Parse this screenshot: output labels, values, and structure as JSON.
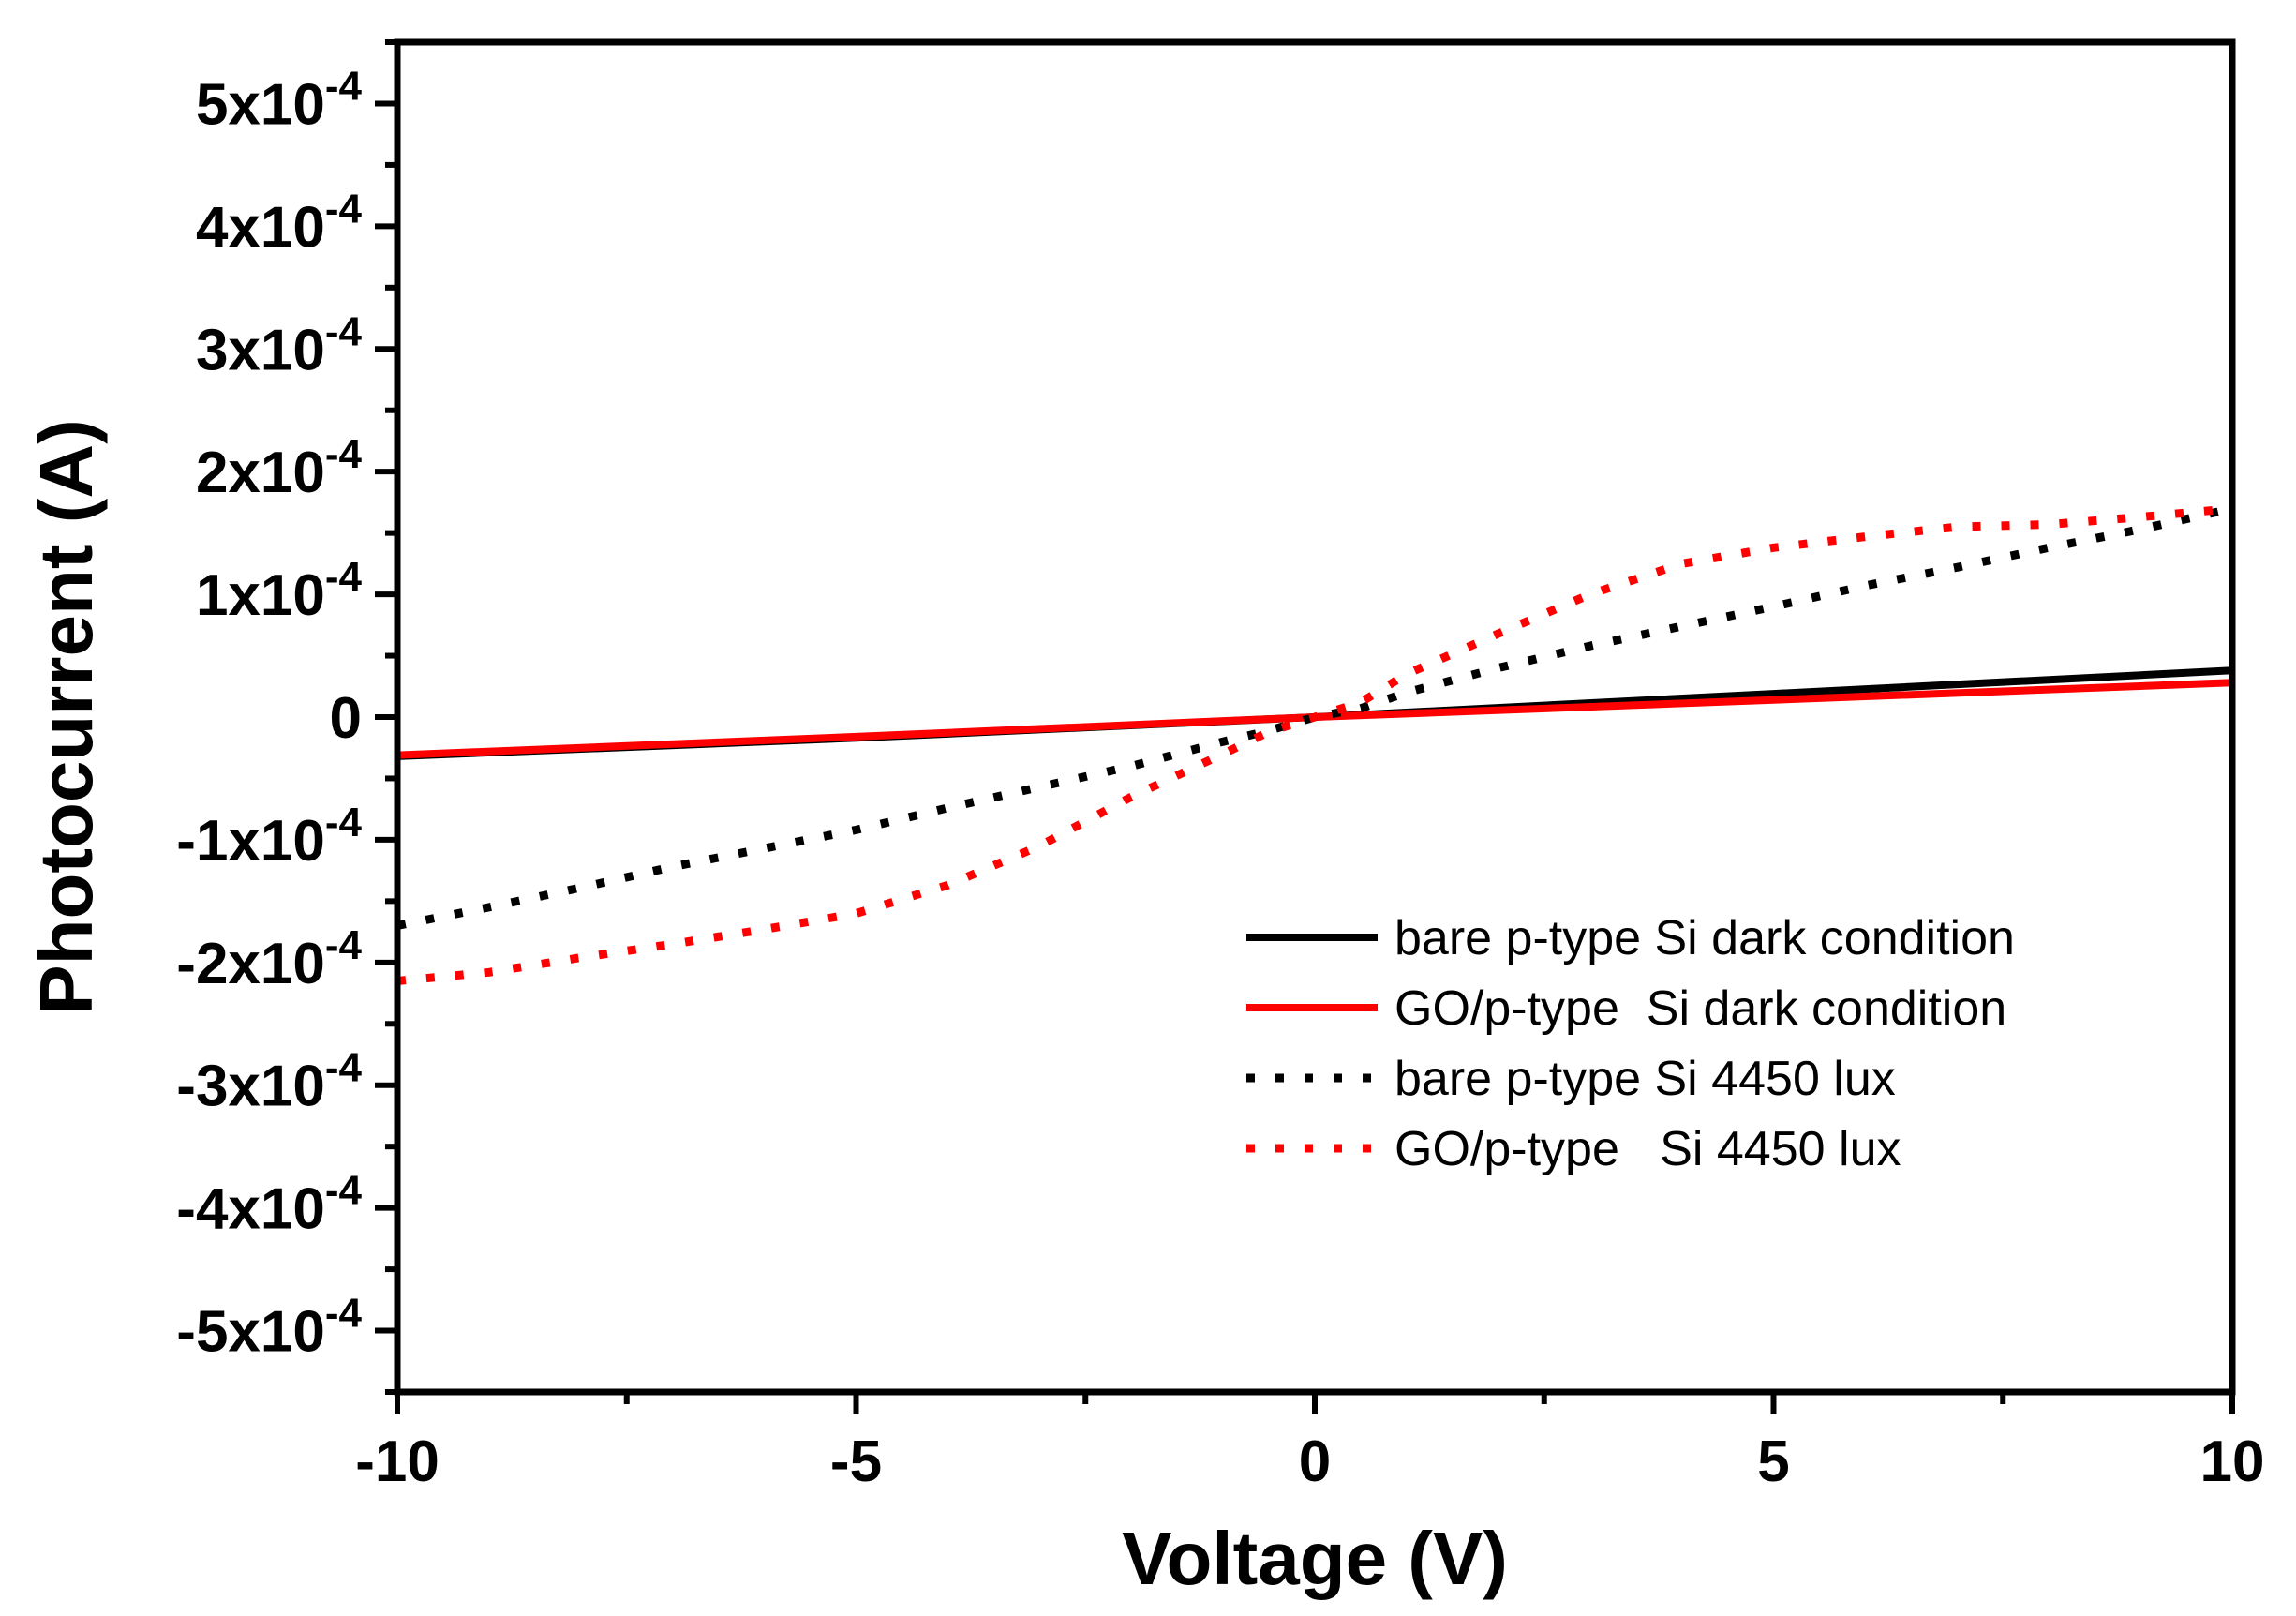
{
  "chart_data": {
    "type": "line",
    "title": "",
    "xlabel": "Voltage (V)",
    "ylabel": "Photocurrent (A)",
    "xlim": [
      -10,
      10
    ],
    "ylim": [
      -0.00055,
      0.00055
    ],
    "x_ticks": [
      {
        "value": -10,
        "label": "-10"
      },
      {
        "value": -5,
        "label": "-5"
      },
      {
        "value": 0,
        "label": "0"
      },
      {
        "value": 5,
        "label": "5"
      },
      {
        "value": 10,
        "label": "10"
      }
    ],
    "y_ticks": [
      {
        "value": 0.0005,
        "mantissa": "5x10",
        "exponent": "-4"
      },
      {
        "value": 0.0004,
        "mantissa": "4x10",
        "exponent": "-4"
      },
      {
        "value": 0.0003,
        "mantissa": "3x10",
        "exponent": "-4"
      },
      {
        "value": 0.0002,
        "mantissa": "2x10",
        "exponent": "-4"
      },
      {
        "value": 0.0001,
        "mantissa": "1x10",
        "exponent": "-4"
      },
      {
        "value": 0,
        "mantissa": "0",
        "exponent": ""
      },
      {
        "value": -0.0001,
        "mantissa": "-1x10",
        "exponent": "-4"
      },
      {
        "value": -0.0002,
        "mantissa": "-2x10",
        "exponent": "-4"
      },
      {
        "value": -0.0003,
        "mantissa": "-3x10",
        "exponent": "-4"
      },
      {
        "value": -0.0004,
        "mantissa": "-4x10",
        "exponent": "-4"
      },
      {
        "value": -0.0005,
        "mantissa": "-5x10",
        "exponent": "-4"
      }
    ],
    "legend_position": "lower-right",
    "series": [
      {
        "name": "bare p-type Si dark condition",
        "color": "#000000",
        "style": "solid",
        "x": [
          -10,
          -5,
          0,
          5,
          10
        ],
        "y": [
          -3.2e-05,
          -1.7e-05,
          0.0,
          1.9e-05,
          3.8e-05
        ]
      },
      {
        "name": "GO/p-type  Si dark condition",
        "color": "#ff0000",
        "style": "solid",
        "x": [
          -10,
          -5,
          0,
          5,
          10
        ],
        "y": [
          -3.1e-05,
          -1.6e-05,
          0.0,
          1.4e-05,
          2.8e-05
        ]
      },
      {
        "name": "bare p-type Si 4450 lux",
        "color": "#000000",
        "style": "dotted",
        "x": [
          -10,
          -9,
          -8,
          -7,
          -6,
          -5,
          -4,
          -3,
          -2,
          -1,
          -0.5,
          0,
          0.5,
          1,
          2,
          3,
          4,
          5,
          6,
          7,
          8,
          9,
          10
        ],
        "y": [
          -0.00017,
          -0.000155,
          -0.000139,
          -0.000122,
          -0.000107,
          -9.2e-05,
          -7.4e-05,
          -5.7e-05,
          -4e-05,
          -2e-05,
          -1.1e-05,
          0.0,
          7e-06,
          2e-05,
          4e-05,
          5.8e-05,
          7.4e-05,
          9e-05,
          0.000107,
          0.000122,
          0.000138,
          0.000153,
          0.00017
        ]
      },
      {
        "name": "GO/p-type   Si 4450 lux",
        "color": "#ff0000",
        "style": "dotted",
        "x": [
          -10,
          -9,
          -8,
          -7,
          -6,
          -5,
          -4,
          -3,
          -2,
          -1,
          -0.5,
          0,
          0.5,
          1,
          2,
          3,
          4,
          5,
          6,
          7,
          8,
          9,
          10
        ],
        "y": [
          -0.000215,
          -0.000208,
          -0.000196,
          -0.000185,
          -0.000173,
          -0.00016,
          -0.000137,
          -0.000105,
          -6.5e-05,
          -3e-05,
          -1.2e-05,
          0.0,
          1.2e-05,
          3.5e-05,
          6.8e-05,
          0.0001,
          0.000125,
          0.000138,
          0.000147,
          0.000155,
          0.000157,
          0.000163,
          0.00017
        ]
      }
    ]
  }
}
